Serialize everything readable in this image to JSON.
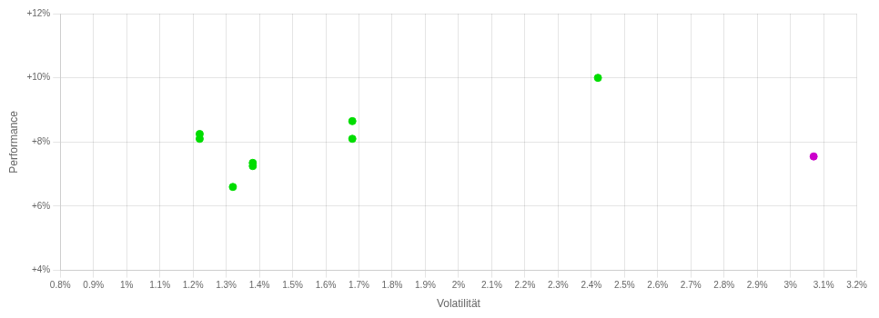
{
  "chart_data": {
    "type": "scatter",
    "x_label": "Volatilität",
    "y_label": "Performance",
    "series": [
      {
        "color": "#00dd00",
        "x": [
          1.22,
          1.22,
          1.32,
          1.38,
          1.38,
          1.68,
          1.68,
          2.42
        ],
        "values": [
          8.1,
          8.25,
          6.6,
          7.35,
          7.25,
          8.65,
          8.1,
          10.0
        ]
      },
      {
        "color": "#cc00cc",
        "x": [
          3.07
        ],
        "values": [
          7.55
        ]
      }
    ],
    "xlim": [
      0.8,
      3.2
    ],
    "xticks": [
      {
        "value": 0.8,
        "label": "0.8%"
      },
      {
        "value": 0.9,
        "label": "0.9%"
      },
      {
        "value": 1.0,
        "label": "1%"
      },
      {
        "value": 1.1,
        "label": "1.1%"
      },
      {
        "value": 1.2,
        "label": "1.2%"
      },
      {
        "value": 1.3,
        "label": "1.3%"
      },
      {
        "value": 1.4,
        "label": "1.4%"
      },
      {
        "value": 1.5,
        "label": "1.5%"
      },
      {
        "value": 1.6,
        "label": "1.6%"
      },
      {
        "value": 1.7,
        "label": "1.7%"
      },
      {
        "value": 1.8,
        "label": "1.8%"
      },
      {
        "value": 1.9,
        "label": "1.9%"
      },
      {
        "value": 2.0,
        "label": "2%"
      },
      {
        "value": 2.1,
        "label": "2.1%"
      },
      {
        "value": 2.2,
        "label": "2.2%"
      },
      {
        "value": 2.3,
        "label": "2.3%"
      },
      {
        "value": 2.4,
        "label": "2.4%"
      },
      {
        "value": 2.5,
        "label": "2.5%"
      },
      {
        "value": 2.6,
        "label": "2.6%"
      },
      {
        "value": 2.7,
        "label": "2.7%"
      },
      {
        "value": 2.8,
        "label": "2.8%"
      },
      {
        "value": 2.9,
        "label": "2.9%"
      },
      {
        "value": 3.0,
        "label": "3%"
      },
      {
        "value": 3.1,
        "label": "3.1%"
      },
      {
        "value": 3.2,
        "label": "3.2%"
      }
    ],
    "ylim": [
      4.0,
      12.0
    ],
    "yticks": [
      {
        "value": 4.0,
        "label": "+4%"
      },
      {
        "value": 6.0,
        "label": "+6%"
      },
      {
        "value": 8.0,
        "label": "+8%"
      },
      {
        "value": 10.0,
        "label": "+10%"
      },
      {
        "value": 12.0,
        "label": "+12%"
      }
    ],
    "grid": true
  }
}
